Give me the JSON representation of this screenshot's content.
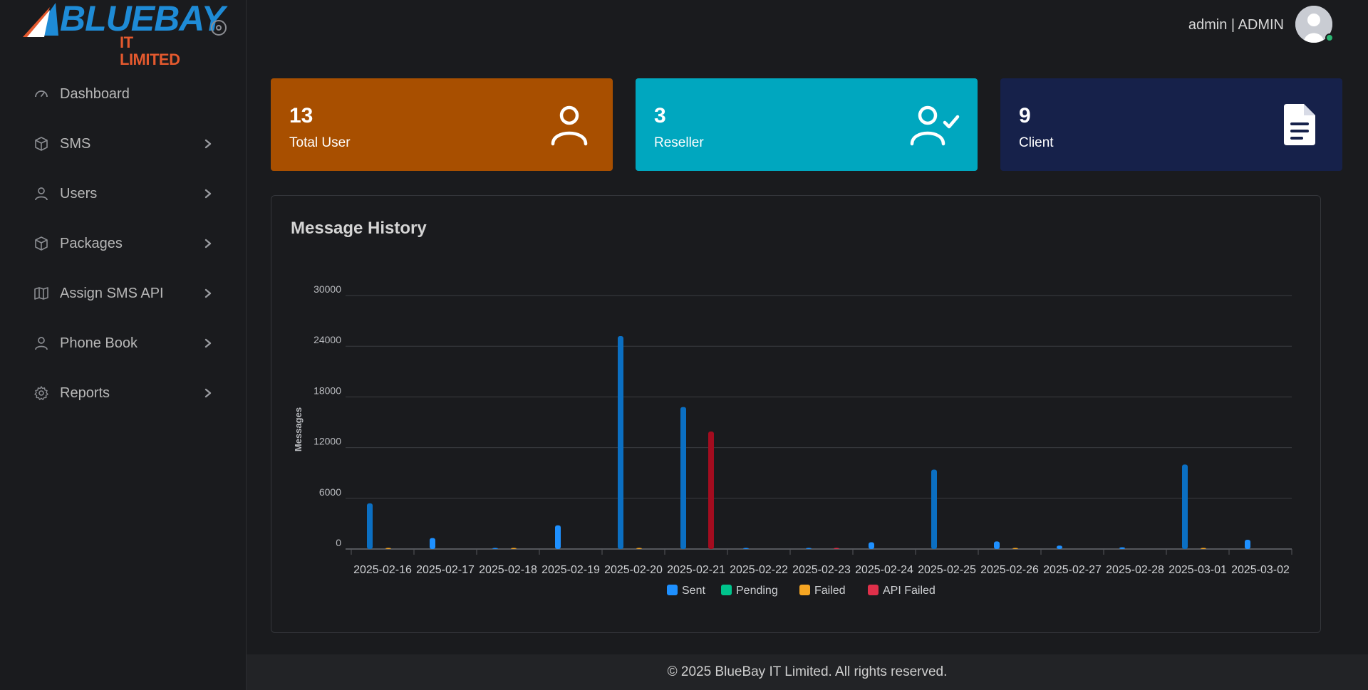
{
  "brand": {
    "name_main": "BLUEBAY",
    "name_sub": "IT LIMITED"
  },
  "sidebar": {
    "items": [
      {
        "label": "Dashboard",
        "icon": "gauge-icon",
        "has_children": false
      },
      {
        "label": "SMS",
        "icon": "box-icon",
        "has_children": true
      },
      {
        "label": "Users",
        "icon": "user-icon",
        "has_children": true
      },
      {
        "label": "Packages",
        "icon": "box-icon",
        "has_children": true
      },
      {
        "label": "Assign SMS API",
        "icon": "map-icon",
        "has_children": true
      },
      {
        "label": "Phone Book",
        "icon": "user-icon",
        "has_children": true
      },
      {
        "label": "Reports",
        "icon": "gear-icon",
        "has_children": true
      }
    ]
  },
  "header": {
    "user_label": "admin | ADMIN"
  },
  "cards": [
    {
      "value": "13",
      "label": "Total User",
      "color": "#a84f00",
      "icon": "user-icon"
    },
    {
      "value": "3",
      "label": "Reseller",
      "color": "#00a7bf",
      "icon": "user-check-icon"
    },
    {
      "value": "9",
      "label": "Client",
      "color": "#16214a",
      "icon": "document-icon"
    }
  ],
  "panel": {
    "title": "Message History"
  },
  "chart_data": {
    "type": "bar",
    "title": "",
    "xlabel": "",
    "ylabel": "Messages",
    "ylim": [
      0,
      30000
    ],
    "yticks": [
      "0",
      "6000",
      "12000",
      "18000",
      "24000",
      "30000"
    ],
    "legend_position": "bottom",
    "grid": true,
    "categories": [
      "2025-02-16",
      "2025-02-17",
      "2025-02-18",
      "2025-02-19",
      "2025-02-20",
      "2025-02-21",
      "2025-02-22",
      "2025-02-23",
      "2025-02-24",
      "2025-02-25",
      "2025-02-26",
      "2025-02-27",
      "2025-02-28",
      "2025-03-01",
      "2025-03-02"
    ],
    "series": [
      {
        "name": "Sent",
        "color": "#1e90ff",
        "values": [
          5400,
          1300,
          100,
          2800,
          25200,
          16800,
          100,
          100,
          800,
          9400,
          900,
          400,
          200,
          10000,
          1100
        ]
      },
      {
        "name": "Pending",
        "color": "#00c48c",
        "values": [
          0,
          0,
          0,
          0,
          0,
          0,
          0,
          0,
          0,
          0,
          0,
          0,
          0,
          0,
          0
        ]
      },
      {
        "name": "Failed",
        "color": "#f6a623",
        "values": [
          50,
          0,
          50,
          0,
          50,
          0,
          0,
          0,
          0,
          0,
          50,
          0,
          0,
          50,
          0
        ]
      },
      {
        "name": "API Failed",
        "color": "#e0304a",
        "values": [
          0,
          0,
          0,
          0,
          0,
          13900,
          0,
          100,
          0,
          0,
          0,
          0,
          0,
          0,
          0
        ]
      }
    ]
  },
  "footer": {
    "text": "© 2025 BlueBay IT Limited. All rights reserved."
  }
}
